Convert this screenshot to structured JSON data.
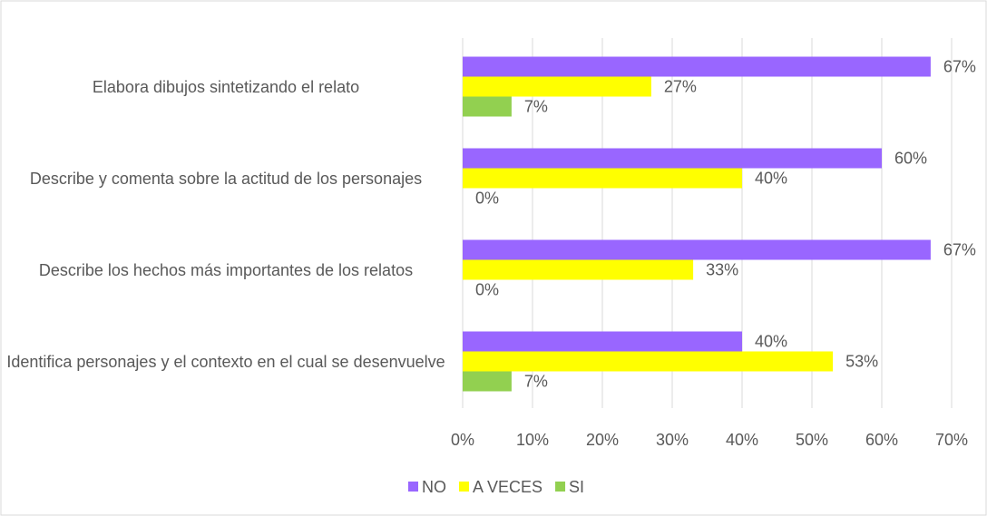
{
  "chart_data": {
    "type": "bar",
    "orientation": "horizontal",
    "categories": [
      "Elabora dibujos sintetizando el relato",
      "Describe y comenta sobre la actitud de los personajes",
      "Describe los hechos más importantes de los relatos",
      "Identifica personajes y el contexto en el cual se desenvuelve"
    ],
    "series": [
      {
        "name": "NO",
        "color": "#9966ff",
        "values": [
          67,
          60,
          67,
          40
        ],
        "value_labels": [
          "67%",
          "60%",
          "67%",
          "40%"
        ]
      },
      {
        "name": "A VECES",
        "color": "#ffff00",
        "values": [
          27,
          40,
          33,
          53
        ],
        "value_labels": [
          "27%",
          "40%",
          "33%",
          "53%"
        ]
      },
      {
        "name": "SI",
        "color": "#92d050",
        "values": [
          7,
          0,
          0,
          7
        ],
        "value_labels": [
          "7%",
          "0%",
          "0%",
          "7%"
        ]
      }
    ],
    "xlim": [
      0,
      70
    ],
    "xticks": [
      {
        "value": 0,
        "label": "0%"
      },
      {
        "value": 10,
        "label": "10%"
      },
      {
        "value": 20,
        "label": "20%"
      },
      {
        "value": 30,
        "label": "30%"
      },
      {
        "value": 40,
        "label": "40%"
      },
      {
        "value": 50,
        "label": "50%"
      },
      {
        "value": 60,
        "label": "60%"
      },
      {
        "value": 70,
        "label": "70%"
      }
    ],
    "grid": true,
    "legend": "bottom"
  }
}
